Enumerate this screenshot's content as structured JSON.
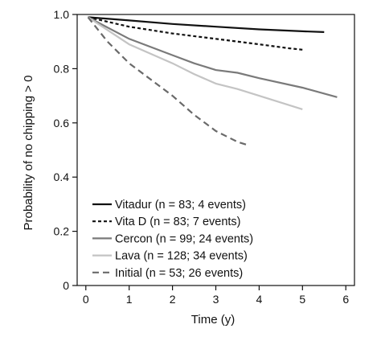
{
  "chart_data": {
    "type": "line",
    "xlabel": "Time (y)",
    "ylabel": "Probability of no chipping > 0",
    "xlim": [
      -0.2,
      6.2
    ],
    "ylim": [
      0,
      1.0
    ],
    "x_ticks": [
      "0",
      "1",
      "2",
      "3",
      "4",
      "5",
      "6"
    ],
    "y_ticks": [
      "0",
      "0.2",
      "0.4",
      "0.6",
      "0.8",
      "1.0"
    ],
    "legend_position": "bottom-left",
    "series": [
      {
        "name": "Vitadur (n = 83; 4 events)",
        "color": "#111111",
        "dash": "solid",
        "points": [
          [
            0.05,
            0.99
          ],
          [
            1,
            0.978
          ],
          [
            2,
            0.965
          ],
          [
            3,
            0.955
          ],
          [
            4,
            0.945
          ],
          [
            5,
            0.938
          ],
          [
            5.5,
            0.935
          ]
        ]
      },
      {
        "name": "Vita D (n = 83; 7 events)",
        "color": "#111111",
        "dash": "dotted",
        "points": [
          [
            0.05,
            0.99
          ],
          [
            1,
            0.955
          ],
          [
            2,
            0.93
          ],
          [
            3,
            0.91
          ],
          [
            4,
            0.89
          ],
          [
            4.7,
            0.875
          ],
          [
            5,
            0.87
          ]
        ]
      },
      {
        "name": "Cercon (n = 99; 24 events)",
        "color": "#7a7a7a",
        "dash": "solid",
        "points": [
          [
            0.05,
            0.99
          ],
          [
            1,
            0.91
          ],
          [
            2,
            0.85
          ],
          [
            2.5,
            0.82
          ],
          [
            3,
            0.795
          ],
          [
            3.5,
            0.785
          ],
          [
            4,
            0.765
          ],
          [
            5,
            0.73
          ],
          [
            5.8,
            0.695
          ]
        ]
      },
      {
        "name": "Lava (n = 128; 34 events)",
        "color": "#c4c4c4",
        "dash": "solid",
        "points": [
          [
            0.05,
            0.99
          ],
          [
            1,
            0.89
          ],
          [
            2,
            0.82
          ],
          [
            2.5,
            0.78
          ],
          [
            3,
            0.745
          ],
          [
            3.5,
            0.725
          ],
          [
            4,
            0.7
          ],
          [
            5,
            0.65
          ]
        ]
      },
      {
        "name": "Initial (n = 53; 26 events)",
        "color": "#6a6a6a",
        "dash": "dashed",
        "points": [
          [
            0.05,
            0.99
          ],
          [
            0.5,
            0.9
          ],
          [
            1,
            0.82
          ],
          [
            1.5,
            0.76
          ],
          [
            2,
            0.7
          ],
          [
            2.5,
            0.63
          ],
          [
            3,
            0.57
          ],
          [
            3.5,
            0.53
          ],
          [
            3.7,
            0.52
          ]
        ]
      }
    ]
  }
}
